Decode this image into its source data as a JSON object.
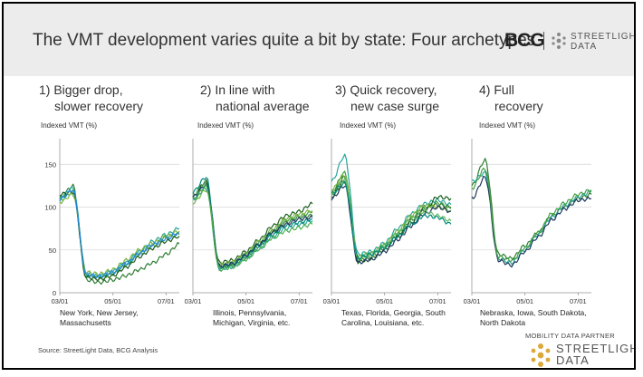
{
  "slide": {
    "title": "The VMT development varies quite a bit by state: Four archetypes",
    "bcg_logo": "BCG",
    "streetlight_logo": [
      "STREETLIGHT",
      "DATA"
    ],
    "source": "Source: StreetLight Data, BCG Analysis",
    "partner_label": "MOBILITY DATA PARTNER",
    "partner_logo": [
      "STREETLIGHT",
      "DATA"
    ]
  },
  "panels": [
    {
      "title": [
        "1) Bigger drop,",
        "slower recovery"
      ],
      "ylabel": "Indexed VMT (%)",
      "states": [
        "New York, New Jersey,",
        "Massachusetts"
      ]
    },
    {
      "title": [
        "2) In line with",
        "national average"
      ],
      "ylabel": "Indexed VMT (%)",
      "states": [
        "Illinois, Pennsylvania,",
        "Michigan, Virginia, etc."
      ]
    },
    {
      "title": [
        "3) Quick recovery,",
        "new case surge"
      ],
      "ylabel": "Indexed VMT (%)",
      "states": [
        "Texas, Florida, Georgia, South",
        "Carolina, Louisiana, etc."
      ]
    },
    {
      "title": [
        "4) Full",
        "recovery"
      ],
      "ylabel": "Indexed VMT (%)",
      "states": [
        "Nebraska, Iowa, South Dakota,",
        "North Dakota"
      ]
    }
  ],
  "chart_data": [
    {
      "type": "line",
      "ylabel": "Indexed VMT (%)",
      "xticks": [
        "03/01",
        "05/01",
        "07/01"
      ],
      "yticks": [
        0,
        50,
        100,
        150
      ],
      "ylim": [
        0,
        180
      ],
      "grid": true,
      "x": [
        "03/01",
        "03/15",
        "04/01",
        "04/15",
        "05/01",
        "05/15",
        "06/01",
        "06/15",
        "07/01",
        "07/06"
      ],
      "series": [
        {
          "color": "#2e7d32",
          "values": [
            110,
            125,
            15,
            12,
            15,
            20,
            27,
            35,
            45,
            57
          ]
        },
        {
          "color": "#43a047",
          "values": [
            108,
            118,
            20,
            18,
            22,
            32,
            45,
            55,
            65,
            68
          ]
        },
        {
          "color": "#26a69a",
          "values": [
            112,
            122,
            22,
            20,
            25,
            35,
            48,
            60,
            68,
            75
          ]
        },
        {
          "color": "#7cb342",
          "values": [
            106,
            115,
            24,
            22,
            27,
            38,
            50,
            58,
            66,
            72
          ]
        },
        {
          "color": "#1b5e20",
          "values": [
            115,
            118,
            18,
            16,
            20,
            30,
            42,
            52,
            60,
            66
          ]
        },
        {
          "color": "#1e88e5",
          "values": [
            109,
            120,
            21,
            19,
            24,
            34,
            46,
            56,
            63,
            70
          ]
        }
      ]
    },
    {
      "type": "line",
      "ylabel": "Indexed VMT (%)",
      "xticks": [
        "03/01",
        "05/01",
        "07/01"
      ],
      "yticks": [
        0,
        50,
        100,
        150
      ],
      "ylim": [
        0,
        180
      ],
      "grid": true,
      "x": [
        "03/01",
        "03/15",
        "04/01",
        "04/15",
        "05/01",
        "05/15",
        "06/01",
        "06/15",
        "07/01",
        "07/06"
      ],
      "series": [
        {
          "color": "#1b5e20",
          "values": [
            112,
            130,
            35,
            38,
            48,
            62,
            78,
            90,
            95,
            104
          ]
        },
        {
          "color": "#2e7d32",
          "values": [
            108,
            125,
            30,
            32,
            42,
            55,
            70,
            82,
            88,
            90
          ]
        },
        {
          "color": "#43a047",
          "values": [
            115,
            128,
            32,
            35,
            45,
            58,
            72,
            85,
            90,
            94
          ]
        },
        {
          "color": "#26a69a",
          "values": [
            110,
            122,
            28,
            30,
            40,
            52,
            65,
            75,
            80,
            84
          ]
        },
        {
          "color": "#7cb342",
          "values": [
            105,
            120,
            33,
            36,
            46,
            60,
            74,
            86,
            92,
            96
          ]
        },
        {
          "color": "#00897b",
          "values": [
            118,
            135,
            30,
            33,
            43,
            56,
            68,
            78,
            82,
            86
          ]
        },
        {
          "color": "#1e3a5f",
          "values": [
            112,
            126,
            31,
            34,
            44,
            57,
            71,
            80,
            86,
            88
          ]
        },
        {
          "color": "#4caf50",
          "values": [
            109,
            124,
            27,
            30,
            39,
            51,
            64,
            72,
            76,
            80
          ]
        }
      ]
    },
    {
      "type": "line",
      "ylabel": "Indexed VMT (%)",
      "xticks": [
        "03/01",
        "05/01",
        "07/01"
      ],
      "yticks": [
        0,
        50,
        100,
        150
      ],
      "ylim": [
        0,
        180
      ],
      "grid": true,
      "x": [
        "03/01",
        "03/15",
        "04/01",
        "04/15",
        "05/01",
        "05/15",
        "06/01",
        "06/15",
        "07/01",
        "07/06"
      ],
      "series": [
        {
          "color": "#26a69a",
          "values": [
            130,
            160,
            45,
            48,
            58,
            75,
            92,
            104,
            108,
            103
          ]
        },
        {
          "color": "#43a047",
          "values": [
            118,
            140,
            40,
            45,
            55,
            70,
            88,
            100,
            105,
            98
          ]
        },
        {
          "color": "#2e7d32",
          "values": [
            115,
            135,
            38,
            42,
            52,
            68,
            85,
            98,
            103,
            100
          ]
        },
        {
          "color": "#1b5e20",
          "values": [
            112,
            130,
            36,
            40,
            50,
            65,
            82,
            96,
            112,
            110
          ]
        },
        {
          "color": "#7cb342",
          "values": [
            120,
            138,
            42,
            46,
            56,
            72,
            90,
            102,
            100,
            96
          ]
        },
        {
          "color": "#1e3a5f",
          "values": [
            110,
            125,
            35,
            39,
            48,
            62,
            78,
            92,
            100,
            95
          ]
        },
        {
          "color": "#66bb6a",
          "values": [
            114,
            132,
            40,
            44,
            54,
            70,
            86,
            95,
            90,
            84
          ]
        },
        {
          "color": "#00897b",
          "values": [
            116,
            128,
            41,
            45,
            53,
            66,
            80,
            90,
            88,
            80
          ]
        }
      ]
    },
    {
      "type": "line",
      "ylabel": "Indexed VMT (%)",
      "xticks": [
        "03/01",
        "05/01",
        "07/01"
      ],
      "yticks": [
        0,
        50,
        100,
        150
      ],
      "ylim": [
        0,
        180
      ],
      "grid": true,
      "x": [
        "03/01",
        "03/15",
        "04/01",
        "04/15",
        "05/01",
        "05/15",
        "06/01",
        "06/15",
        "07/01",
        "07/06"
      ],
      "series": [
        {
          "color": "#2e7d32",
          "values": [
            125,
            155,
            45,
            40,
            55,
            70,
            90,
            100,
            110,
            115
          ]
        },
        {
          "color": "#26a69a",
          "values": [
            130,
            140,
            40,
            35,
            50,
            68,
            88,
            102,
            112,
            118
          ]
        },
        {
          "color": "#1e3a5f",
          "values": [
            110,
            135,
            38,
            32,
            48,
            65,
            85,
            98,
            108,
            110
          ]
        },
        {
          "color": "#43a047",
          "values": [
            122,
            145,
            42,
            38,
            52,
            70,
            92,
            105,
            115,
            120
          ]
        }
      ]
    }
  ]
}
